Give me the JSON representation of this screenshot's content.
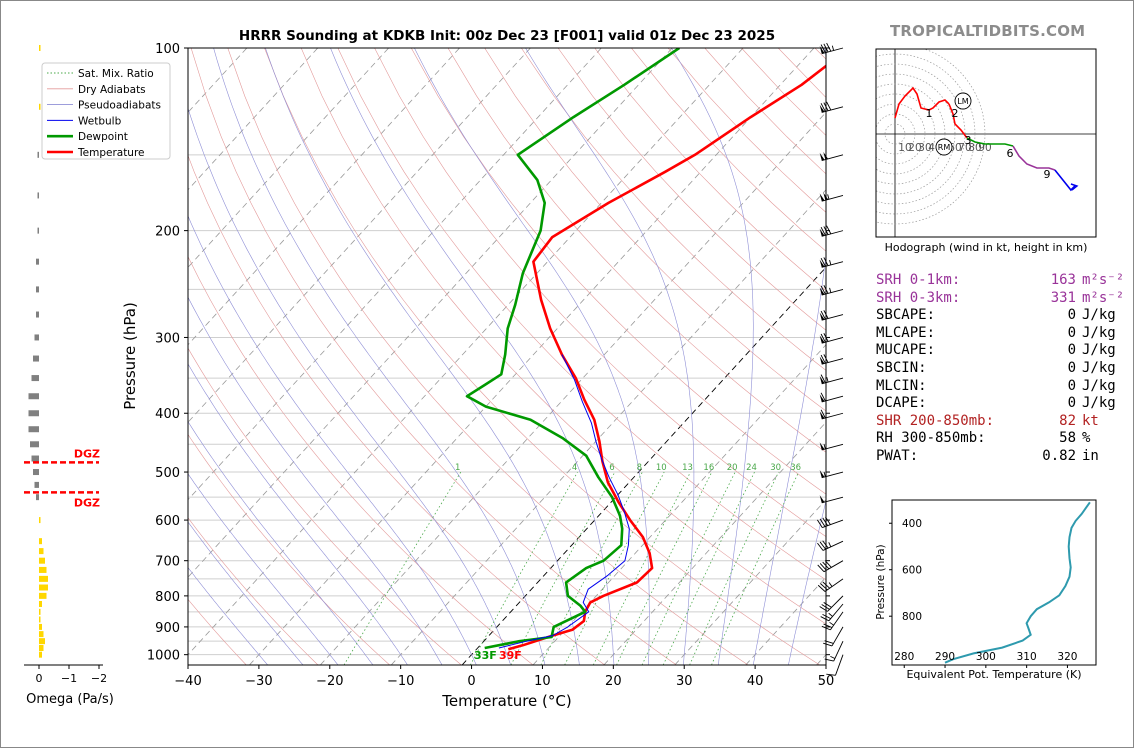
{
  "brand": "TROPICALTIDBITS.COM",
  "title": "HRRR Sounding at KDKB Init: 00z Dec 23 [F001] valid 01z Dec 23 2025",
  "colors": {
    "temperature": "#ff0000",
    "dewpoint": "#009900",
    "wetbulb": "#0000ee",
    "srh": "#993399",
    "shr": "#b22222",
    "eqpt": "#2e9aae",
    "dgz": "#ff0000",
    "omega_pos": "#ffd700",
    "omega_neg": "#808080"
  },
  "chart_data": [
    {
      "type": "line",
      "name": "skewt",
      "title": "HRRR Sounding at KDKB Init: 00z Dec 23 [F001] valid 01z Dec 23 2025",
      "xlabel": "Temperature (°C)",
      "ylabel": "Pressure (hPa)",
      "xlim": [
        -40,
        50
      ],
      "ylim": [
        1040,
        100
      ],
      "y_scale": "log",
      "xticks": [
        "−40",
        "−30",
        "−20",
        "−10",
        "0",
        "10",
        "20",
        "30",
        "40",
        "50"
      ],
      "yticks": [
        "100",
        "200",
        "300",
        "400",
        "500",
        "600",
        "700",
        "800",
        "900",
        "1000"
      ],
      "legend": {
        "position": "upper-left",
        "entries": [
          "Sat. Mix. Ratio",
          "Dry Adiabats",
          "Pseudoadiabats",
          "Wetbulb",
          "Dewpoint",
          "Temperature"
        ]
      },
      "mixing_ratio_labels": [
        "1",
        "4",
        "6",
        "8",
        "10",
        "13",
        "16",
        "20",
        "24",
        "30",
        "36"
      ],
      "surface_labels": {
        "dewpoint": "33F",
        "temperature": "39F"
      },
      "series": [
        {
          "name": "Temperature",
          "points": [
            [
              4.5,
              980
            ],
            [
              6,
              965
            ],
            [
              9,
              930
            ],
            [
              11,
              910
            ],
            [
              11.5,
              880
            ],
            [
              10.5,
              850
            ],
            [
              10,
              820
            ],
            [
              11,
              800
            ],
            [
              14,
              760
            ],
            [
              14.3,
              720
            ],
            [
              12,
              680
            ],
            [
              9,
              640
            ],
            [
              5,
              600
            ],
            [
              1,
              560
            ],
            [
              -3,
              520
            ],
            [
              -6.5,
              480
            ],
            [
              -9.5,
              445
            ],
            [
              -13,
              410
            ],
            [
              -17,
              380
            ],
            [
              -21,
              350
            ],
            [
              -26,
              320
            ],
            [
              -31,
              290
            ],
            [
              -36,
              260
            ],
            [
              -42,
              225
            ],
            [
              -42.5,
              205
            ],
            [
              -39,
              180
            ],
            [
              -35,
              160
            ],
            [
              -33,
              150
            ],
            [
              -30,
              130
            ],
            [
              -27,
              115
            ],
            [
              -25,
              100
            ]
          ]
        },
        {
          "name": "Dewpoint",
          "points": [
            [
              1,
              975
            ],
            [
              5,
              950
            ],
            [
              9,
              935
            ],
            [
              8,
              900
            ],
            [
              10.5,
              850
            ],
            [
              9,
              830
            ],
            [
              6,
              800
            ],
            [
              4,
              760
            ],
            [
              5,
              720
            ],
            [
              6.5,
              700
            ],
            [
              7,
              660
            ],
            [
              5,
              620
            ],
            [
              3,
              590
            ],
            [
              -0.5,
              550
            ],
            [
              -5,
              510
            ],
            [
              -9.5,
              470
            ],
            [
              -15,
              440
            ],
            [
              -22,
              410
            ],
            [
              -30,
              390
            ],
            [
              -34,
              375
            ],
            [
              -33,
              360
            ],
            [
              -32,
              345
            ],
            [
              -34,
              320
            ],
            [
              -37,
              290
            ],
            [
              -39,
              265
            ],
            [
              -42,
              235
            ],
            [
              -45,
              200
            ],
            [
              -48,
              180
            ],
            [
              -52,
              165
            ],
            [
              -58,
              150
            ],
            [
              -55,
              130
            ],
            [
              -52,
              115
            ],
            [
              -49,
              100
            ]
          ]
        },
        {
          "name": "Wetbulb",
          "points": [
            [
              3,
              975
            ],
            [
              6,
              950
            ],
            [
              9,
              930
            ],
            [
              10,
              900
            ],
            [
              11,
              850
            ],
            [
              9,
              820
            ],
            [
              8,
              780
            ],
            [
              9,
              740
            ],
            [
              9.5,
              700
            ],
            [
              8,
              660
            ],
            [
              6,
              620
            ],
            [
              3,
              580
            ],
            [
              0,
              545
            ],
            [
              -3.5,
              510
            ],
            [
              -7,
              475
            ],
            [
              -10,
              445
            ],
            [
              -13,
              415
            ],
            [
              -17,
              383
            ],
            [
              -21,
              352
            ],
            [
              -26,
              320
            ]
          ]
        }
      ],
      "winds_note": "wind barbs at right edge"
    },
    {
      "type": "line",
      "name": "omega",
      "xlabel": "Omega (Pa/s)",
      "xticks": [
        "0",
        "−1",
        "−2"
      ],
      "bars": [
        {
          "p": 1000,
          "v": -0.1
        },
        {
          "p": 975,
          "v": -0.15
        },
        {
          "p": 950,
          "v": -0.2
        },
        {
          "p": 925,
          "v": -0.15
        },
        {
          "p": 900,
          "v": -0.1
        },
        {
          "p": 875,
          "v": -0.05
        },
        {
          "p": 850,
          "v": -0.05
        },
        {
          "p": 825,
          "v": -0.1
        },
        {
          "p": 800,
          "v": -0.25
        },
        {
          "p": 775,
          "v": -0.3
        },
        {
          "p": 750,
          "v": -0.3
        },
        {
          "p": 725,
          "v": -0.25
        },
        {
          "p": 700,
          "v": -0.2
        },
        {
          "p": 675,
          "v": -0.15
        },
        {
          "p": 650,
          "v": -0.1
        },
        {
          "p": 600,
          "v": -0.05
        },
        {
          "p": 550,
          "v": 0.1
        },
        {
          "p": 525,
          "v": 0.15
        },
        {
          "p": 500,
          "v": 0.2
        },
        {
          "p": 475,
          "v": 0.25
        },
        {
          "p": 450,
          "v": 0.3
        },
        {
          "p": 425,
          "v": 0.35
        },
        {
          "p": 400,
          "v": 0.35
        },
        {
          "p": 375,
          "v": 0.35
        },
        {
          "p": 350,
          "v": 0.25
        },
        {
          "p": 325,
          "v": 0.2
        },
        {
          "p": 300,
          "v": 0.15
        },
        {
          "p": 275,
          "v": 0.1
        },
        {
          "p": 250,
          "v": 0.1
        },
        {
          "p": 225,
          "v": 0.1
        },
        {
          "p": 200,
          "v": 0.05
        },
        {
          "p": 175,
          "v": 0.05
        },
        {
          "p": 150,
          "v": 0.05
        },
        {
          "p": 125,
          "v": -0.05
        },
        {
          "p": 100,
          "v": -0.05
        }
      ],
      "dgz_label": "DGZ",
      "dgz_pressures": [
        482,
        540
      ]
    },
    {
      "type": "line",
      "name": "hodograph",
      "xlabel": "Hodograph (wind in kt, height in km)",
      "ring_labels": [
        "10",
        "20",
        "30",
        "40",
        "50",
        "60",
        "70",
        "80",
        "90"
      ],
      "height_labels": [
        "1",
        "2",
        "3",
        "6",
        "9"
      ],
      "markers": [
        "LM",
        "RM"
      ],
      "series": [
        {
          "name": "0-1km",
          "color": "#ff0000",
          "points": [
            [
              0,
              8
            ],
            [
              2,
              15
            ],
            [
              5,
              19
            ],
            [
              9,
              23
            ],
            [
              11,
              20
            ],
            [
              13,
              13
            ],
            [
              17,
              12
            ],
            [
              19,
              13
            ],
            [
              22,
              16
            ],
            [
              25,
              17
            ],
            [
              27,
              15
            ]
          ]
        },
        {
          "name": "1-3km",
          "color": "#ff0000",
          "points": [
            [
              27,
              15
            ],
            [
              29,
              10
            ],
            [
              30,
              5
            ],
            [
              33,
              2
            ],
            [
              36,
              -2
            ]
          ]
        },
        {
          "name": "3-6km",
          "color": "#009900",
          "points": [
            [
              36,
              -2
            ],
            [
              40,
              -4
            ],
            [
              45,
              -5
            ],
            [
              50,
              -5
            ],
            [
              55,
              -5
            ],
            [
              59,
              -6
            ]
          ]
        },
        {
          "name": "6-9km",
          "color": "#993399",
          "points": [
            [
              59,
              -6
            ],
            [
              62,
              -11
            ],
            [
              66,
              -15
            ],
            [
              71,
              -17
            ],
            [
              77,
              -17
            ],
            [
              80,
              -18
            ]
          ]
        },
        {
          "name": "9-12km",
          "color": "#0000ee",
          "points": [
            [
              80,
              -18
            ],
            [
              84,
              -23
            ],
            [
              88,
              -28
            ],
            [
              90,
              -26
            ]
          ]
        }
      ]
    },
    {
      "type": "line",
      "name": "theta-e",
      "xlabel": "Equivalent Pot. Temperature (K)",
      "ylabel": "Pressure (hPa)",
      "xlim": [
        277,
        327
      ],
      "ylim": [
        1010,
        300
      ],
      "xticks": [
        "280",
        "290",
        "300",
        "310",
        "320"
      ],
      "yticks": [
        "400",
        "600",
        "800"
      ],
      "series": [
        {
          "name": "theta-e",
          "points": [
            [
              290,
              1000
            ],
            [
              292,
              985
            ],
            [
              297,
              960
            ],
            [
              304,
              935
            ],
            [
              309,
              905
            ],
            [
              311,
              880
            ],
            [
              310.5,
              855
            ],
            [
              310,
              830
            ],
            [
              311,
              800
            ],
            [
              312.5,
              770
            ],
            [
              315.5,
              740
            ],
            [
              318,
              710
            ],
            [
              319.5,
              670
            ],
            [
              320.5,
              630
            ],
            [
              320.8,
              590
            ],
            [
              320.5,
              550
            ],
            [
              320.3,
              500
            ],
            [
              320.5,
              460
            ],
            [
              321,
              420
            ],
            [
              322,
              390
            ],
            [
              323.5,
              360
            ],
            [
              324.5,
              335
            ],
            [
              325.5,
              310
            ]
          ]
        }
      ]
    }
  ],
  "hodo_label": "Hodograph (wind in kt, height in km)",
  "omega_label": "Omega (Pa/s)",
  "stats": [
    {
      "label": "SRH 0-1km:",
      "value": "163",
      "unit": "m²s⁻²",
      "color": "srh"
    },
    {
      "label": "SRH 0-3km:",
      "value": "331",
      "unit": "m²s⁻²",
      "color": "srh"
    },
    {
      "label": "SBCAPE:",
      "value": "0",
      "unit": "J/kg",
      "color": "base"
    },
    {
      "label": "MLCAPE:",
      "value": "0",
      "unit": "J/kg",
      "color": "base"
    },
    {
      "label": "MUCAPE:",
      "value": "0",
      "unit": "J/kg",
      "color": "base"
    },
    {
      "label": "SBCIN:",
      "value": "0",
      "unit": "J/kg",
      "color": "base"
    },
    {
      "label": "MLCIN:",
      "value": "0",
      "unit": "J/kg",
      "color": "base"
    },
    {
      "label": "DCAPE:",
      "value": "0",
      "unit": "J/kg",
      "color": "base"
    },
    {
      "label": "SHR 200-850mb:",
      "value": "82",
      "unit": "kt",
      "color": "shr"
    },
    {
      "label": "RH 300-850mb:",
      "value": "58",
      "unit": "%",
      "color": "base"
    },
    {
      "label": "PWAT:",
      "value": "0.82",
      "unit": "in",
      "color": "base"
    }
  ],
  "wind_barbs": [
    {
      "p": 100,
      "dir": 255,
      "spd": 85
    },
    {
      "p": 125,
      "dir": 255,
      "spd": 80
    },
    {
      "p": 150,
      "dir": 255,
      "spd": 100
    },
    {
      "p": 175,
      "dir": 255,
      "spd": 105
    },
    {
      "p": 200,
      "dir": 255,
      "spd": 80
    },
    {
      "p": 225,
      "dir": 255,
      "spd": 75
    },
    {
      "p": 250,
      "dir": 255,
      "spd": 75
    },
    {
      "p": 275,
      "dir": 255,
      "spd": 70
    },
    {
      "p": 300,
      "dir": 255,
      "spd": 70
    },
    {
      "p": 325,
      "dir": 255,
      "spd": 70
    },
    {
      "p": 350,
      "dir": 255,
      "spd": 65
    },
    {
      "p": 375,
      "dir": 255,
      "spd": 60
    },
    {
      "p": 400,
      "dir": 255,
      "spd": 60
    },
    {
      "p": 450,
      "dir": 255,
      "spd": 55
    },
    {
      "p": 500,
      "dir": 255,
      "spd": 55
    },
    {
      "p": 550,
      "dir": 255,
      "spd": 50
    },
    {
      "p": 600,
      "dir": 250,
      "spd": 40
    },
    {
      "p": 650,
      "dir": 245,
      "spd": 35
    },
    {
      "p": 700,
      "dir": 240,
      "spd": 40
    },
    {
      "p": 750,
      "dir": 235,
      "spd": 35
    },
    {
      "p": 800,
      "dir": 225,
      "spd": 30
    },
    {
      "p": 825,
      "dir": 220,
      "spd": 25
    },
    {
      "p": 850,
      "dir": 215,
      "spd": 25
    },
    {
      "p": 900,
      "dir": 210,
      "spd": 20
    },
    {
      "p": 950,
      "dir": 205,
      "spd": 15
    },
    {
      "p": 1000,
      "dir": 200,
      "spd": 10
    }
  ]
}
